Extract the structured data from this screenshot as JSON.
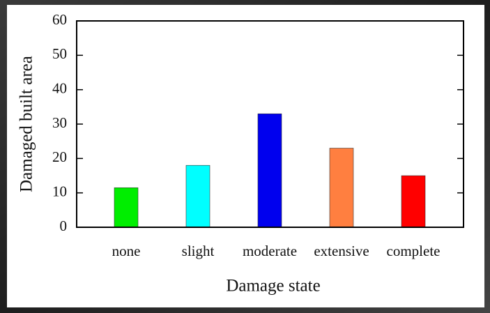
{
  "chart_data": {
    "type": "bar",
    "x_label": "Damage state",
    "y_label": "Damaged built area",
    "categories": [
      "none",
      "slight",
      "moderate",
      "extensive",
      "complete"
    ],
    "values": [
      11.5,
      18,
      33,
      23,
      15
    ],
    "colors": [
      "#00ee00",
      "#00ffff",
      "#0000ee",
      "#ff7f40",
      "#ff0000"
    ],
    "ylim": [
      0,
      60
    ],
    "yticks": [
      0,
      10,
      20,
      30,
      40,
      50,
      60
    ],
    "grid": false
  }
}
